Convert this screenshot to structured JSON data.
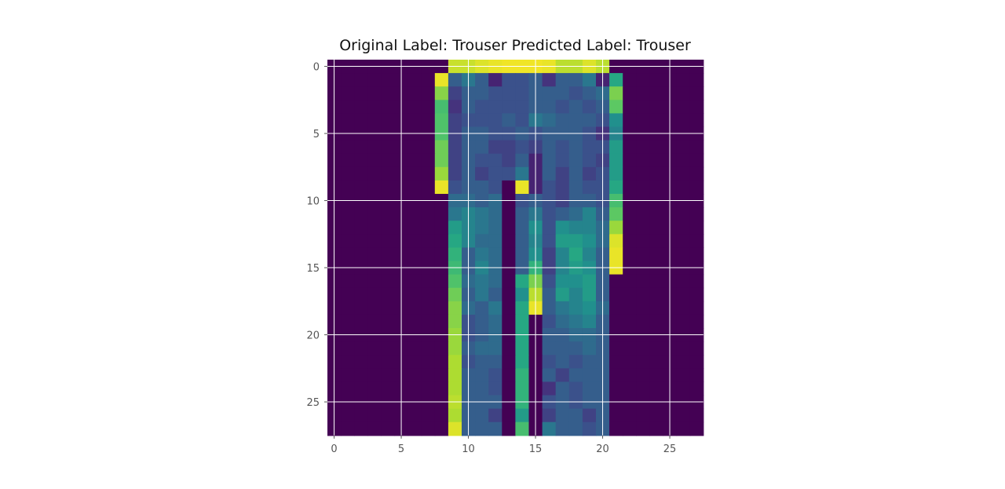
{
  "chart_data": {
    "type": "heatmap",
    "title": "Original Label: Trouser  Predicted Label: Trouser",
    "colormap": "viridis",
    "xlabel": "",
    "ylabel": "",
    "xlim": [
      -0.5,
      27.5
    ],
    "ylim": [
      27.5,
      -0.5
    ],
    "x_ticks": [
      "0",
      "5",
      "10",
      "15",
      "20",
      "25"
    ],
    "y_ticks": [
      "0",
      "5",
      "10",
      "15",
      "20",
      "25"
    ],
    "grid": true,
    "value_range": [
      0,
      1
    ],
    "z": [
      [
        0,
        0,
        0,
        0,
        0,
        0,
        0,
        0,
        0,
        0.92,
        0.92,
        0.95,
        0.97,
        0.98,
        0.98,
        0.98,
        0.97,
        0.9,
        0.9,
        0.95,
        0.9,
        0,
        0,
        0,
        0,
        0,
        0,
        0
      ],
      [
        0,
        0,
        0,
        0,
        0,
        0,
        0,
        0,
        0.97,
        0.3,
        0.4,
        0.3,
        0.1,
        0.25,
        0.25,
        0.3,
        0.15,
        0.3,
        0.3,
        0.4,
        0.1,
        0.6,
        0,
        0,
        0,
        0,
        0,
        0
      ],
      [
        0,
        0,
        0,
        0,
        0,
        0,
        0,
        0,
        0.82,
        0.2,
        0.3,
        0.3,
        0.25,
        0.25,
        0.25,
        0.3,
        0.3,
        0.3,
        0.25,
        0.3,
        0.35,
        0.8,
        0,
        0,
        0,
        0,
        0,
        0
      ],
      [
        0,
        0,
        0,
        0,
        0,
        0,
        0,
        0,
        0.7,
        0.15,
        0.3,
        0.25,
        0.25,
        0.25,
        0.25,
        0.3,
        0.3,
        0.25,
        0.3,
        0.25,
        0.3,
        0.75,
        0,
        0,
        0,
        0,
        0,
        0
      ],
      [
        0,
        0,
        0,
        0,
        0,
        0,
        0,
        0,
        0.72,
        0.2,
        0.25,
        0.25,
        0.25,
        0.3,
        0.25,
        0.4,
        0.35,
        0.3,
        0.3,
        0.3,
        0.25,
        0.5,
        0,
        0,
        0,
        0,
        0,
        0
      ],
      [
        0,
        0,
        0,
        0,
        0,
        0,
        0,
        0,
        0.72,
        0.2,
        0.3,
        0.3,
        0.25,
        0.25,
        0.3,
        0.25,
        0.3,
        0.3,
        0.3,
        0.25,
        0.15,
        0.45,
        0,
        0,
        0,
        0,
        0,
        0
      ],
      [
        0,
        0,
        0,
        0,
        0,
        0,
        0,
        0,
        0.78,
        0.2,
        0.3,
        0.3,
        0.2,
        0.2,
        0.25,
        0.2,
        0.3,
        0.25,
        0.3,
        0.25,
        0.25,
        0.55,
        0,
        0,
        0,
        0,
        0,
        0
      ],
      [
        0,
        0,
        0,
        0,
        0,
        0,
        0,
        0,
        0.78,
        0.2,
        0.3,
        0.25,
        0.25,
        0.2,
        0.3,
        0.1,
        0.3,
        0.25,
        0.3,
        0.25,
        0.2,
        0.55,
        0,
        0,
        0,
        0,
        0,
        0
      ],
      [
        0,
        0,
        0,
        0,
        0,
        0,
        0,
        0,
        0.85,
        0.2,
        0.3,
        0.2,
        0.25,
        0.25,
        0.4,
        0.1,
        0.3,
        0.2,
        0.3,
        0.2,
        0.25,
        0.55,
        0,
        0,
        0,
        0,
        0,
        0
      ],
      [
        0,
        0,
        0,
        0,
        0,
        0,
        0,
        0,
        0.97,
        0.25,
        0.3,
        0.3,
        0.25,
        0,
        0.97,
        0.1,
        0.25,
        0.2,
        0.3,
        0.25,
        0.25,
        0.6,
        0,
        0,
        0,
        0,
        0,
        0
      ],
      [
        0,
        0,
        0,
        0,
        0,
        0,
        0,
        0,
        0,
        0.35,
        0.35,
        0.3,
        0.35,
        0,
        0.25,
        0.3,
        0.25,
        0.2,
        0.3,
        0.3,
        0.25,
        0.7,
        0,
        0,
        0,
        0,
        0,
        0
      ],
      [
        0,
        0,
        0,
        0,
        0,
        0,
        0,
        0,
        0,
        0.4,
        0.45,
        0.4,
        0.35,
        0,
        0.3,
        0.4,
        0.25,
        0.3,
        0.35,
        0.45,
        0.3,
        0.75,
        0,
        0,
        0,
        0,
        0,
        0
      ],
      [
        0,
        0,
        0,
        0,
        0,
        0,
        0,
        0,
        0,
        0.55,
        0.45,
        0.4,
        0.35,
        0,
        0.3,
        0.5,
        0.25,
        0.5,
        0.45,
        0.45,
        0.35,
        0.85,
        0,
        0,
        0,
        0,
        0,
        0
      ],
      [
        0,
        0,
        0,
        0,
        0,
        0,
        0,
        0,
        0,
        0.6,
        0.45,
        0.35,
        0.35,
        0,
        0.3,
        0.45,
        0.25,
        0.55,
        0.55,
        0.5,
        0.35,
        0.95,
        0,
        0,
        0,
        0,
        0,
        0
      ],
      [
        0,
        0,
        0,
        0,
        0,
        0,
        0,
        0,
        0,
        0.65,
        0.3,
        0.4,
        0.35,
        0,
        0.3,
        0.5,
        0.2,
        0.45,
        0.6,
        0.45,
        0.3,
        0.97,
        0,
        0,
        0,
        0,
        0,
        0
      ],
      [
        0,
        0,
        0,
        0,
        0,
        0,
        0,
        0,
        0,
        0.68,
        0.3,
        0.45,
        0.35,
        0,
        0.3,
        0.65,
        0.2,
        0.45,
        0.55,
        0.5,
        0.3,
        0.97,
        0,
        0,
        0,
        0,
        0,
        0
      ],
      [
        0,
        0,
        0,
        0,
        0,
        0,
        0,
        0,
        0,
        0.72,
        0.35,
        0.4,
        0.35,
        0,
        0.6,
        0.8,
        0.25,
        0.5,
        0.5,
        0.55,
        0.3,
        0,
        0,
        0,
        0,
        0,
        0,
        0
      ],
      [
        0,
        0,
        0,
        0,
        0,
        0,
        0,
        0,
        0,
        0.78,
        0.3,
        0.4,
        0.3,
        0,
        0.5,
        0.9,
        0.3,
        0.55,
        0.45,
        0.55,
        0.3,
        0,
        0,
        0,
        0,
        0,
        0,
        0
      ],
      [
        0,
        0,
        0,
        0,
        0,
        0,
        0,
        0,
        0,
        0.82,
        0.35,
        0.3,
        0.4,
        0,
        0.6,
        0.97,
        0.3,
        0.4,
        0.45,
        0.5,
        0.35,
        0,
        0,
        0,
        0,
        0,
        0,
        0
      ],
      [
        0,
        0,
        0,
        0,
        0,
        0,
        0,
        0,
        0,
        0.82,
        0.25,
        0.3,
        0.35,
        0,
        0.6,
        0,
        0.25,
        0.35,
        0.4,
        0.45,
        0.3,
        0,
        0,
        0,
        0,
        0,
        0,
        0
      ],
      [
        0,
        0,
        0,
        0,
        0,
        0,
        0,
        0,
        0,
        0.85,
        0.25,
        0.3,
        0.35,
        0,
        0.6,
        0,
        0.3,
        0.3,
        0.35,
        0.35,
        0.3,
        0,
        0,
        0,
        0,
        0,
        0,
        0
      ],
      [
        0,
        0,
        0,
        0,
        0,
        0,
        0,
        0,
        0,
        0.85,
        0.3,
        0.35,
        0.35,
        0,
        0.6,
        0,
        0.3,
        0.3,
        0.3,
        0.35,
        0.3,
        0,
        0,
        0,
        0,
        0,
        0,
        0
      ],
      [
        0,
        0,
        0,
        0,
        0,
        0,
        0,
        0,
        0,
        0.88,
        0.25,
        0.3,
        0.3,
        0,
        0.6,
        0,
        0.25,
        0.3,
        0.25,
        0.3,
        0.3,
        0,
        0,
        0,
        0,
        0,
        0,
        0
      ],
      [
        0,
        0,
        0,
        0,
        0,
        0,
        0,
        0,
        0,
        0.88,
        0.3,
        0.3,
        0.25,
        0,
        0.65,
        0,
        0.3,
        0.2,
        0.3,
        0.3,
        0.3,
        0,
        0,
        0,
        0,
        0,
        0,
        0
      ],
      [
        0,
        0,
        0,
        0,
        0,
        0,
        0,
        0,
        0,
        0.88,
        0.3,
        0.3,
        0.25,
        0,
        0.65,
        0,
        0.15,
        0.3,
        0.25,
        0.3,
        0.3,
        0,
        0,
        0,
        0,
        0,
        0,
        0
      ],
      [
        0,
        0,
        0,
        0,
        0,
        0,
        0,
        0,
        0,
        0.9,
        0.3,
        0.3,
        0.3,
        0,
        0.65,
        0,
        0.25,
        0.3,
        0.25,
        0.3,
        0.3,
        0,
        0,
        0,
        0,
        0,
        0,
        0
      ],
      [
        0,
        0,
        0,
        0,
        0,
        0,
        0,
        0,
        0,
        0.88,
        0.3,
        0.3,
        0.2,
        0,
        0.55,
        0,
        0.2,
        0.3,
        0.3,
        0.2,
        0.3,
        0,
        0,
        0,
        0,
        0,
        0,
        0
      ],
      [
        0,
        0,
        0,
        0,
        0,
        0,
        0,
        0,
        0,
        0.95,
        0.3,
        0.3,
        0.3,
        0,
        0.7,
        0,
        0.4,
        0.3,
        0.3,
        0.25,
        0.3,
        0,
        0,
        0,
        0,
        0,
        0,
        0
      ]
    ]
  }
}
